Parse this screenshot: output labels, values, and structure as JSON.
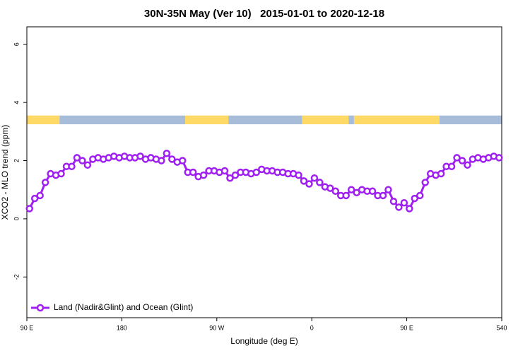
{
  "chart_data": {
    "type": "line",
    "title": "30N-35N May (Ver 10)   2015-01-01 to 2020-12-18",
    "x_label": "Longitude (deg E)",
    "y_label": "XCO2 - MLO trend (ppm)",
    "xlim": [
      90,
      540
    ],
    "ylim": [
      -3.4,
      6.6
    ],
    "xticks": [
      {
        "value": 90,
        "label": "90 E"
      },
      180,
      {
        "value": 270,
        "label": "90 W"
      },
      {
        "value": 360,
        "label": "0"
      },
      {
        "value": 450,
        "label": "90 E"
      },
      540
    ],
    "yticks": [
      -2,
      0,
      2,
      4,
      6
    ],
    "legend": "bottom-left",
    "series": [
      {
        "name": "Land (Nadir&Glint) and Ocean (Glint)",
        "color": "#a020f0",
        "x": [
          92.5,
          97.5,
          102.5,
          107.5,
          112.5,
          117.5,
          122.5,
          127.5,
          132.5,
          137.5,
          142.5,
          147.5,
          152.5,
          157.5,
          162.5,
          167.5,
          172.5,
          177.5,
          182.5,
          187.5,
          192.5,
          197.5,
          202.5,
          207.5,
          212.5,
          217.5,
          222.5,
          227.5,
          232.5,
          237.5,
          242.5,
          247.5,
          252.5,
          257.5,
          262.5,
          267.5,
          272.5,
          277.5,
          282.5,
          287.5,
          292.5,
          297.5,
          302.5,
          307.5,
          312.5,
          317.5,
          322.5,
          327.5,
          332.5,
          337.5,
          342.5,
          347.5,
          352.5,
          357.5,
          362.5,
          367.5,
          372.5,
          377.5,
          382.5,
          387.5,
          392.5,
          397.5,
          402.5,
          407.5,
          412.5,
          417.5,
          422.5,
          427.5,
          432.5,
          437.5,
          442.5,
          447.5,
          452.5,
          457.5,
          462.5,
          467.5,
          472.5,
          477.5,
          482.5,
          487.5,
          492.5,
          497.5,
          502.5,
          507.5,
          512.5,
          517.5,
          522.5,
          527.5,
          532.5,
          537.5
        ],
        "values": [
          0.35,
          0.7,
          0.8,
          1.25,
          1.55,
          1.5,
          1.55,
          1.8,
          1.8,
          2.1,
          2.0,
          1.85,
          2.05,
          2.1,
          2.05,
          2.1,
          2.15,
          2.1,
          2.15,
          2.1,
          2.1,
          2.15,
          2.05,
          2.1,
          2.05,
          2.0,
          2.25,
          2.05,
          1.95,
          2.0,
          1.6,
          1.6,
          1.45,
          1.5,
          1.65,
          1.65,
          1.6,
          1.65,
          1.4,
          1.5,
          1.6,
          1.6,
          1.55,
          1.6,
          1.7,
          1.65,
          1.65,
          1.6,
          1.6,
          1.55,
          1.55,
          1.5,
          1.3,
          1.2,
          1.4,
          1.25,
          1.1,
          1.05,
          0.95,
          0.8,
          0.8,
          1.0,
          0.9,
          1.0,
          0.95,
          0.95,
          0.8,
          0.8,
          1.0,
          0.6,
          0.4,
          0.55,
          0.35,
          0.7,
          0.8,
          1.25,
          1.55,
          1.5,
          1.55,
          1.8,
          1.8,
          2.1,
          2.0,
          1.85,
          2.05,
          2.1,
          2.05,
          2.1,
          2.15,
          2.1
        ]
      }
    ],
    "surface_band": {
      "ylim": [
        3.25,
        3.55
      ],
      "segments": [
        {
          "x": [
            90,
            121
          ],
          "color": "#ffd966"
        },
        {
          "x": [
            121,
            240
          ],
          "color": "#a7bcd9"
        },
        {
          "x": [
            240,
            281
          ],
          "color": "#ffd966"
        },
        {
          "x": [
            281,
            351
          ],
          "color": "#a7bcd9"
        },
        {
          "x": [
            351,
            395
          ],
          "color": "#ffd966"
        },
        {
          "x": [
            395,
            400
          ],
          "color": "#a7bcd9"
        },
        {
          "x": [
            400,
            481
          ],
          "color": "#ffd966"
        },
        {
          "x": [
            481,
            540
          ],
          "color": "#a7bcd9"
        }
      ]
    }
  }
}
